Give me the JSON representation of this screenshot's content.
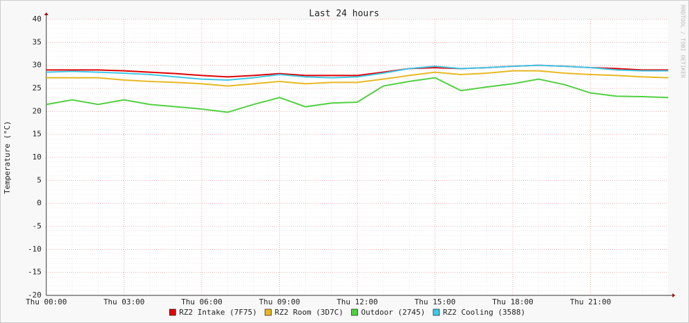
{
  "chart_data": {
    "type": "line",
    "title": "Last 24 hours",
    "y_label": "Temperature (°C)",
    "watermark": "RRDTOOL / TOBI OETIKER",
    "x": [
      0,
      1,
      2,
      3,
      4,
      5,
      6,
      7,
      8,
      9,
      10,
      11,
      12,
      13,
      14,
      15,
      16,
      17,
      18,
      19,
      20,
      21,
      22,
      23,
      24
    ],
    "xlim": [
      0,
      24
    ],
    "xticks": [
      {
        "value": 0,
        "label": "Thu 00:00"
      },
      {
        "value": 3,
        "label": "Thu 03:00"
      },
      {
        "value": 6,
        "label": "Thu 06:00"
      },
      {
        "value": 9,
        "label": "Thu 09:00"
      },
      {
        "value": 12,
        "label": "Thu 12:00"
      },
      {
        "value": 15,
        "label": "Thu 15:00"
      },
      {
        "value": 18,
        "label": "Thu 18:00"
      },
      {
        "value": 21,
        "label": "Thu 21:00"
      }
    ],
    "ylim": [
      -20,
      40
    ],
    "yticks": [
      -20,
      -15,
      -10,
      -5,
      0,
      5,
      10,
      15,
      20,
      25,
      30,
      35,
      40
    ],
    "grid": true,
    "series": [
      {
        "name": "RZ2 Intake (7F75)",
        "color": "#e00000",
        "values": [
          29.0,
          29.0,
          29.0,
          28.8,
          28.5,
          28.2,
          27.8,
          27.5,
          27.8,
          28.2,
          27.8,
          27.8,
          27.8,
          28.5,
          29.3,
          29.5,
          29.3,
          29.5,
          29.8,
          30.0,
          29.8,
          29.5,
          29.3,
          29.0,
          29.0
        ]
      },
      {
        "name": "RZ2 Room (3D7C)",
        "color": "#e8b820",
        "values": [
          27.3,
          27.3,
          27.3,
          26.8,
          26.5,
          26.3,
          26.0,
          25.5,
          26.0,
          26.5,
          26.0,
          26.3,
          26.3,
          27.0,
          27.8,
          28.5,
          28.0,
          28.3,
          28.8,
          28.8,
          28.3,
          28.0,
          27.8,
          27.5,
          27.3
        ]
      },
      {
        "name": "Outdoor (2745)",
        "color": "#50d040",
        "values": [
          21.5,
          22.5,
          21.5,
          22.5,
          21.5,
          21.0,
          20.5,
          19.8,
          21.5,
          23.0,
          21.0,
          21.8,
          22.0,
          25.5,
          26.5,
          27.3,
          24.5,
          25.3,
          26.0,
          27.0,
          25.8,
          24.0,
          23.3,
          23.2,
          23.0
        ]
      },
      {
        "name": "RZ2 Cooling (3588)",
        "color": "#40c8e8",
        "values": [
          28.5,
          28.7,
          28.5,
          28.3,
          28.0,
          27.5,
          27.0,
          26.8,
          27.3,
          28.0,
          27.5,
          27.3,
          27.5,
          28.3,
          29.3,
          29.8,
          29.3,
          29.5,
          29.8,
          30.0,
          29.8,
          29.5,
          29.0,
          28.8,
          28.8
        ]
      }
    ]
  }
}
